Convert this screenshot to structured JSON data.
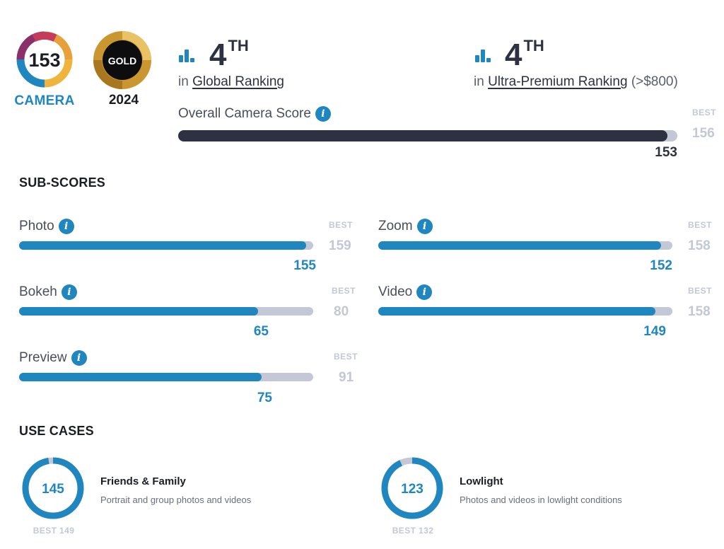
{
  "badges": {
    "score_badge": {
      "value": "153",
      "label": "CAMERA"
    },
    "gold_badge": {
      "text": "GOLD",
      "year": "2024"
    }
  },
  "rankings": {
    "global": {
      "position": "4",
      "suffix": "TH",
      "prefix": "in",
      "link_label": "Global Ranking"
    },
    "ultra": {
      "position": "4",
      "suffix": "TH",
      "prefix": "in",
      "link_label": "Ultra-Premium Ranking",
      "extra": "(>$800)"
    }
  },
  "overall": {
    "label": "Overall Camera Score",
    "best_label": "BEST",
    "best": 156,
    "score": 153
  },
  "sub_scores": {
    "title": "SUB-SCORES",
    "best_label": "BEST",
    "items": [
      {
        "name": "Photo",
        "score": 155,
        "best": 159
      },
      {
        "name": "Zoom",
        "score": 152,
        "best": 158
      },
      {
        "name": "Bokeh",
        "score": 65,
        "best": 80
      },
      {
        "name": "Video",
        "score": 149,
        "best": 158
      },
      {
        "name": "Preview",
        "score": 75,
        "best": 91
      }
    ]
  },
  "use_cases": {
    "title": "USE CASES",
    "items": [
      {
        "title": "Friends & Family",
        "description": "Portrait and group photos and videos",
        "score": 145,
        "best": 149,
        "best_text": "BEST 149"
      },
      {
        "title": "Lowlight",
        "description": "Photos and videos in lowlight conditions",
        "score": 123,
        "best": 132,
        "best_text": "BEST 132"
      }
    ]
  },
  "colors": {
    "accent": "#1f86bf",
    "dark": "#2e3142",
    "track": "#c3c7d6",
    "gold": "#c9962f"
  },
  "icons": {
    "ranking": "bar-chart-icon",
    "info": "info-icon"
  }
}
